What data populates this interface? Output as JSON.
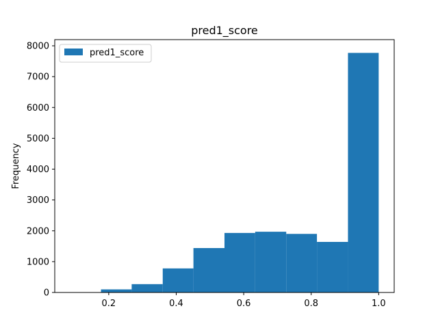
{
  "chart_data": {
    "type": "bar",
    "title": "pred1_score",
    "xlabel": "",
    "ylabel": "Frequency",
    "xlim": [
      0.04,
      1.046
    ],
    "ylim": [
      0,
      8200
    ],
    "xticks": [
      0.2,
      0.4,
      0.6,
      0.8,
      1.0
    ],
    "xtick_labels": [
      "0.2",
      "0.4",
      "0.6",
      "0.8",
      "1.0"
    ],
    "yticks": [
      0,
      1000,
      2000,
      3000,
      4000,
      5000,
      6000,
      7000,
      8000
    ],
    "ytick_labels": [
      "0",
      "1000",
      "2000",
      "3000",
      "4000",
      "5000",
      "6000",
      "7000",
      "8000"
    ],
    "grid": false,
    "legend_position": "top-left",
    "bins": [
      {
        "x0": 0.085,
        "x1": 0.177,
        "value": 0
      },
      {
        "x0": 0.177,
        "x1": 0.268,
        "value": 100
      },
      {
        "x0": 0.268,
        "x1": 0.36,
        "value": 270
      },
      {
        "x0": 0.36,
        "x1": 0.451,
        "value": 780
      },
      {
        "x0": 0.451,
        "x1": 0.543,
        "value": 1440
      },
      {
        "x0": 0.543,
        "x1": 0.634,
        "value": 1930
      },
      {
        "x0": 0.634,
        "x1": 0.726,
        "value": 1970
      },
      {
        "x0": 0.726,
        "x1": 0.817,
        "value": 1900
      },
      {
        "x0": 0.817,
        "x1": 0.909,
        "value": 1640
      },
      {
        "x0": 0.909,
        "x1": 1.0,
        "value": 7770
      }
    ],
    "series": [
      {
        "name": "pred1_score",
        "color": "#1f77b4"
      }
    ]
  }
}
